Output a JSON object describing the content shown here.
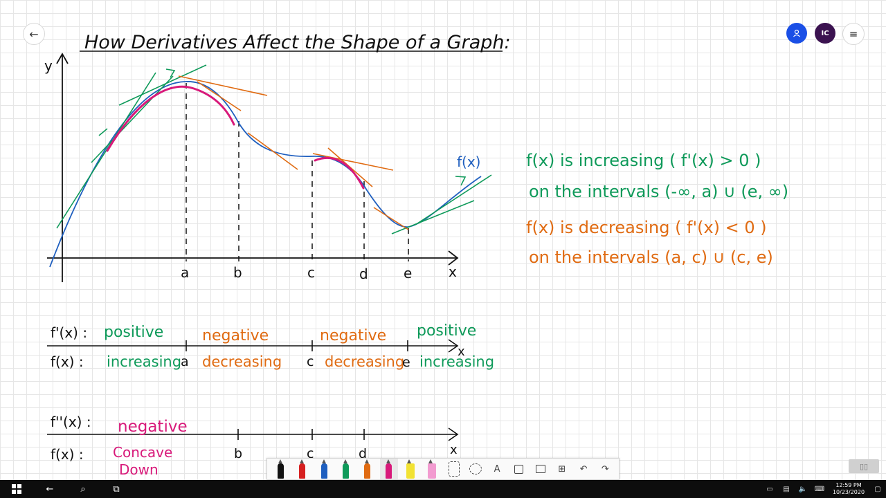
{
  "nav": {
    "back_icon": "arrow-left-icon",
    "user_icon": "person-icon",
    "user_initials": "IC",
    "menu_icon": "hamburger-icon"
  },
  "whiteboard": {
    "title": "How Derivatives Affect the Shape of a Graph:",
    "axes": {
      "y_label": "y",
      "x_label": "x"
    },
    "points": [
      "a",
      "b",
      "c",
      "d",
      "e"
    ],
    "curve_label": "f(x)",
    "notes": {
      "inc_line1": "f(x) is increasing  ( f'(x) > 0 )",
      "inc_line2": "on the intervals (-∞, a) ∪ (e, ∞)",
      "dec_line1": "f(x)  is decreasing  ( f'(x) < 0 )",
      "dec_line2": "on the intervals (a, c) ∪ (c, e)"
    },
    "first_deriv": {
      "row1_label": "f'(x) :",
      "row2_label": "f(x) :",
      "signs": [
        "positive",
        "negative",
        "negative",
        "positive"
      ],
      "behaviors": [
        "increasing",
        "decreasing",
        "decreasing",
        "increasing"
      ],
      "tick_labels": [
        "a",
        "c",
        "e"
      ],
      "axis_label": "x"
    },
    "second_deriv": {
      "row1_label": "f''(x) :",
      "row2_label": "f(x) :",
      "sign": "negative",
      "concavity_line1": "Concave",
      "concavity_line2": "Down",
      "tick_labels": [
        "b",
        "c",
        "d"
      ],
      "axis_label": "x"
    }
  },
  "colors": {
    "blue": "#1f5fbf",
    "green": "#0f9a5a",
    "orange": "#e06b12",
    "magenta": "#d8197a",
    "ink": "#111111"
  },
  "toolbar": {
    "tools": [
      "pen-black",
      "pen-red",
      "pen-blue",
      "pen-green",
      "pen-orange",
      "pen-magenta",
      "highlighter-yellow",
      "highlighter-pink",
      "eraser",
      "lasso",
      "text",
      "shape",
      "image",
      "insert",
      "undo",
      "redo"
    ],
    "text_tool_label": "A"
  },
  "taskbar": {
    "time": "12:59 PM",
    "date": "10/23/2020"
  }
}
